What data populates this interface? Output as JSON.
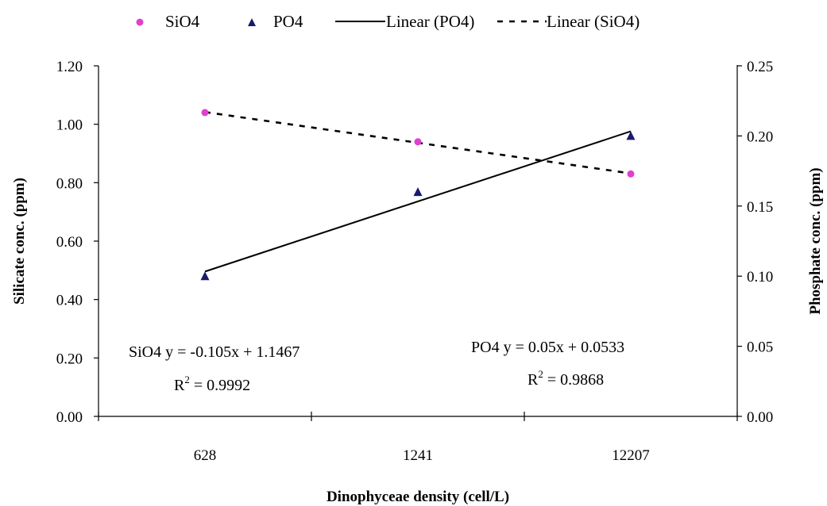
{
  "chart_data": {
    "type": "scatter",
    "categories": [
      "628",
      "1241",
      "12207"
    ],
    "series": [
      {
        "name": "SiO4",
        "axis": "left",
        "marker": "circle",
        "color": "#e040d0",
        "values": [
          1.04,
          0.94,
          0.83
        ]
      },
      {
        "name": "PO4",
        "axis": "right",
        "marker": "triangle",
        "color": "#1a1a6e",
        "values": [
          0.1,
          0.16,
          0.2
        ]
      }
    ],
    "trendlines": [
      {
        "name": "Linear (PO4)",
        "series": "PO4",
        "style": "solid",
        "slope": 0.05,
        "intercept": 0.0533
      },
      {
        "name": "Linear (SiO4)",
        "series": "SiO4",
        "style": "dashed",
        "slope": -0.105,
        "intercept": 1.1467
      }
    ],
    "legend": {
      "placement": "top",
      "items": [
        "SiO4",
        "PO4",
        "Linear (PO4)",
        "Linear (SiO4)"
      ]
    },
    "xlabel": "Dinophyceae density (cell/L)",
    "ylabel": "Silicate conc. (ppm)",
    "y2label": "Phosphate conc. (ppm)",
    "ylim": [
      0,
      1.2
    ],
    "y2lim": [
      0,
      0.25
    ],
    "yticks": [
      "0.00",
      "0.20",
      "0.40",
      "0.60",
      "0.80",
      "1.00",
      "1.20"
    ],
    "y2ticks": [
      "0.00",
      "0.05",
      "0.10",
      "0.15",
      "0.20",
      "0.25"
    ],
    "grid": false,
    "annotations": {
      "sio4_equation": "SiO4 y = -0.105x + 1.1467",
      "sio4_r2_prefix": "R",
      "sio4_r2_sup": "2",
      "sio4_r2_value": " = 0.9992",
      "po4_equation": "PO4 y = 0.05x + 0.0533",
      "po4_r2_prefix": "R",
      "po4_r2_sup": "2",
      "po4_r2_value": " = 0.9868"
    }
  }
}
